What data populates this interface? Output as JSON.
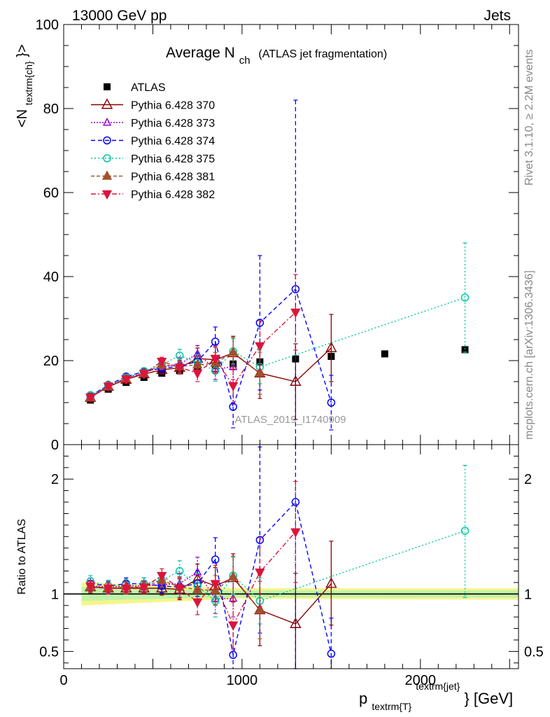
{
  "header": {
    "left": "13000 GeV pp",
    "right": "Jets"
  },
  "side_labels": {
    "rivet": "Rivet 3.1.10, ≥ 2.2M events",
    "mcplots": "mcplots.cern.ch [arXiv:1306.3436]"
  },
  "colors": {
    "atlas": "#000000",
    "p370": "#8b0000",
    "p373": "#9400d3",
    "p374": "#0000ff",
    "p375": "#00c8a0",
    "p381": "#a0522d",
    "p382": "#dc143c",
    "band_inner": "#bff2a8",
    "band_outer": "#f5f58c"
  },
  "chart_data": [
    {
      "type": "scatter",
      "panel": "main",
      "title": "Average N",
      "title_sub": "ch",
      "title_suffix": "(ATLAS jet fragmentation)",
      "ylabel": "<N",
      "ylabel_sub": "textrm{ch}",
      "ylabel_suffix": "}>",
      "watermark": "ATLAS_2019_I1740909",
      "ylim": [
        0,
        100
      ],
      "xlim": [
        0,
        2550
      ],
      "y_ticks": [
        0,
        20,
        40,
        60,
        80,
        100
      ],
      "y_tick_labels": [
        "0",
        "20",
        "40",
        "60",
        "80",
        "100"
      ],
      "legend_position": "top-left",
      "series": [
        {
          "name": "ATLAS",
          "key": "atlas",
          "x": [
            150,
            250,
            350,
            450,
            550,
            650,
            750,
            850,
            950,
            1100,
            1300,
            1500,
            1800,
            2250
          ],
          "y": [
            10.6,
            13.2,
            14.8,
            16.0,
            17.0,
            17.6,
            18.2,
            18.8,
            19.2,
            19.7,
            20.4,
            21.0,
            21.6,
            22.6
          ]
        },
        {
          "name": "Pythia 6.428 370",
          "key": "p370",
          "x": [
            150,
            250,
            350,
            450,
            550,
            650,
            750,
            850,
            950,
            1100,
            1300,
            1500
          ],
          "y": [
            11.2,
            13.8,
            15.5,
            16.8,
            17.8,
            18.3,
            20.5,
            20.2,
            21.8,
            17.0,
            15.0,
            23.0
          ],
          "err": [
            0.6,
            0.6,
            0.7,
            0.8,
            1.0,
            1.5,
            2.5,
            3.0,
            4.0,
            6.0,
            9.0,
            8.0
          ]
        },
        {
          "name": "Pythia 6.428 373",
          "key": "p373",
          "x": [
            150,
            250,
            350,
            450,
            550,
            650,
            750,
            850,
            950
          ],
          "y": [
            11.4,
            14.0,
            15.8,
            17.2,
            18.4,
            19.2,
            21.6,
            18.0,
            18.5
          ],
          "err": [
            0.6,
            0.6,
            0.7,
            0.8,
            1.0,
            1.5,
            2.0,
            2.5,
            3.0
          ]
        },
        {
          "name": "Pythia 6.428 374",
          "key": "p374",
          "x": [
            150,
            250,
            350,
            450,
            550,
            650,
            750,
            850,
            950,
            1100,
            1300,
            1500
          ],
          "y": [
            11.6,
            14.2,
            16.2,
            17.4,
            18.2,
            18.6,
            19.8,
            24.5,
            9.0,
            29.0,
            37.0,
            10.0
          ],
          "err": [
            0.6,
            0.6,
            0.7,
            0.8,
            1.0,
            1.5,
            2.0,
            3.5,
            5.0,
            16.0,
            45.0,
            6.5
          ]
        },
        {
          "name": "Pythia 6.428 375",
          "key": "p375",
          "x": [
            150,
            250,
            350,
            450,
            550,
            650,
            750,
            850,
            950,
            1100,
            2250
          ],
          "y": [
            11.8,
            14.1,
            16.0,
            17.5,
            19.0,
            21.2,
            19.5,
            17.6,
            22.2,
            18.5,
            35.0
          ],
          "err": [
            0.6,
            0.6,
            0.7,
            0.8,
            1.0,
            1.5,
            2.0,
            2.5,
            3.0,
            4.0,
            13.0
          ]
        },
        {
          "name": "Pythia 6.428 381",
          "key": "p381",
          "x": [
            150,
            250,
            350,
            450,
            550,
            650,
            750,
            850,
            950,
            1100
          ],
          "y": [
            11.2,
            13.8,
            15.7,
            17.0,
            19.0,
            18.6,
            19.0,
            19.4,
            22.0,
            17.0
          ],
          "err": [
            0.6,
            0.6,
            0.7,
            0.8,
            1.0,
            1.5,
            2.0,
            2.5,
            3.5,
            5.0
          ]
        },
        {
          "name": "Pythia 6.428 382",
          "key": "p382",
          "x": [
            150,
            250,
            350,
            450,
            550,
            650,
            750,
            850,
            950,
            1100,
            1300
          ],
          "y": [
            11.3,
            13.9,
            15.6,
            16.9,
            19.8,
            18.4,
            17.0,
            20.5,
            14.0,
            23.5,
            31.5
          ],
          "err": [
            0.6,
            0.6,
            0.7,
            0.8,
            1.0,
            1.5,
            2.0,
            3.0,
            4.0,
            6.0,
            9.0
          ]
        }
      ]
    },
    {
      "type": "scatter",
      "panel": "ratio",
      "ylabel": "Ratio to ATLAS",
      "xlabel": "p",
      "xlabel_sub": "textrm{T}",
      "xlabel_sup": "textrm{jet}",
      "xlabel_suffix": "} [GeV]",
      "ylim": [
        0.35,
        2.3
      ],
      "xlim": [
        0,
        2550
      ],
      "x_ticks": [
        0,
        1000,
        2000
      ],
      "x_tick_labels": [
        "0",
        "1000",
        "2000"
      ],
      "y_ticks": [
        0.5,
        1,
        2
      ],
      "y_tick_labels": [
        "0.5",
        "1",
        "2"
      ],
      "series": [
        {
          "key": "p370",
          "x": [
            150,
            250,
            350,
            450,
            550,
            650,
            750,
            850,
            950,
            1100,
            1300,
            1500
          ],
          "y": [
            1.06,
            1.05,
            1.05,
            1.05,
            1.05,
            1.04,
            1.13,
            1.07,
            1.14,
            0.86,
            0.74,
            1.09
          ],
          "lo": [
            1.01,
            1.0,
            1.0,
            1.0,
            0.99,
            0.95,
            0.98,
            0.91,
            0.93,
            0.55,
            0.3,
            0.73
          ],
          "hi": [
            1.11,
            1.1,
            1.1,
            1.1,
            1.11,
            1.13,
            1.26,
            1.23,
            1.35,
            1.17,
            1.18,
            1.46
          ]
        },
        {
          "key": "p373",
          "x": [
            150,
            250,
            350,
            450,
            550,
            650,
            750,
            850,
            950
          ],
          "y": [
            1.07,
            1.06,
            1.07,
            1.07,
            1.08,
            1.09,
            1.19,
            0.96,
            0.96
          ],
          "lo": [
            1.02,
            1.01,
            1.02,
            1.02,
            1.02,
            1.0,
            1.06,
            0.83,
            0.8
          ],
          "hi": [
            1.12,
            1.11,
            1.12,
            1.12,
            1.14,
            1.18,
            1.32,
            1.09,
            1.12
          ]
        },
        {
          "key": "p374",
          "x": [
            150,
            250,
            350,
            450,
            550,
            650,
            750,
            850,
            950,
            1100,
            1300,
            1500
          ],
          "y": [
            1.09,
            1.07,
            1.09,
            1.09,
            1.07,
            1.06,
            1.09,
            1.3,
            0.47,
            1.47,
            1.8,
            0.48
          ],
          "lo": [
            1.04,
            1.02,
            1.04,
            1.04,
            1.01,
            0.97,
            0.98,
            1.11,
            0.21,
            0.66,
            0.35,
            0.17
          ],
          "hi": [
            1.14,
            1.12,
            1.14,
            1.14,
            1.13,
            1.15,
            1.2,
            1.49,
            0.73,
            2.28,
            2.3,
            0.79
          ]
        },
        {
          "key": "p375",
          "x": [
            150,
            250,
            350,
            450,
            550,
            650,
            750,
            850,
            950,
            1100,
            2250
          ],
          "y": [
            1.11,
            1.07,
            1.08,
            1.09,
            1.12,
            1.2,
            1.07,
            0.94,
            1.16,
            0.94,
            1.55
          ],
          "lo": [
            1.06,
            1.02,
            1.03,
            1.04,
            1.06,
            1.11,
            0.96,
            0.8,
            1.0,
            0.74,
            0.97
          ],
          "hi": [
            1.16,
            1.12,
            1.13,
            1.14,
            1.18,
            1.29,
            1.18,
            1.08,
            1.32,
            1.14,
            2.12
          ]
        },
        {
          "key": "p381",
          "x": [
            150,
            250,
            350,
            450,
            550,
            650,
            750,
            850,
            950,
            1100
          ],
          "y": [
            1.06,
            1.05,
            1.06,
            1.06,
            1.12,
            1.06,
            1.04,
            1.03,
            1.15,
            0.86
          ],
          "lo": [
            1.01,
            1.0,
            1.01,
            1.01,
            1.06,
            0.97,
            0.93,
            0.9,
            0.97,
            0.61
          ],
          "hi": [
            1.11,
            1.1,
            1.11,
            1.11,
            1.18,
            1.15,
            1.15,
            1.16,
            1.33,
            1.11
          ]
        },
        {
          "key": "p382",
          "x": [
            150,
            250,
            350,
            450,
            550,
            650,
            750,
            850,
            950,
            1100,
            1300
          ],
          "y": [
            1.07,
            1.05,
            1.05,
            1.06,
            1.16,
            1.05,
            0.93,
            1.09,
            0.73,
            1.19,
            1.54
          ],
          "lo": [
            1.02,
            1.0,
            1.0,
            1.01,
            1.1,
            0.96,
            0.82,
            0.93,
            0.52,
            0.89,
            1.1
          ],
          "hi": [
            1.12,
            1.1,
            1.1,
            1.11,
            1.22,
            1.14,
            1.04,
            1.25,
            0.94,
            1.49,
            1.98
          ]
        }
      ]
    }
  ]
}
